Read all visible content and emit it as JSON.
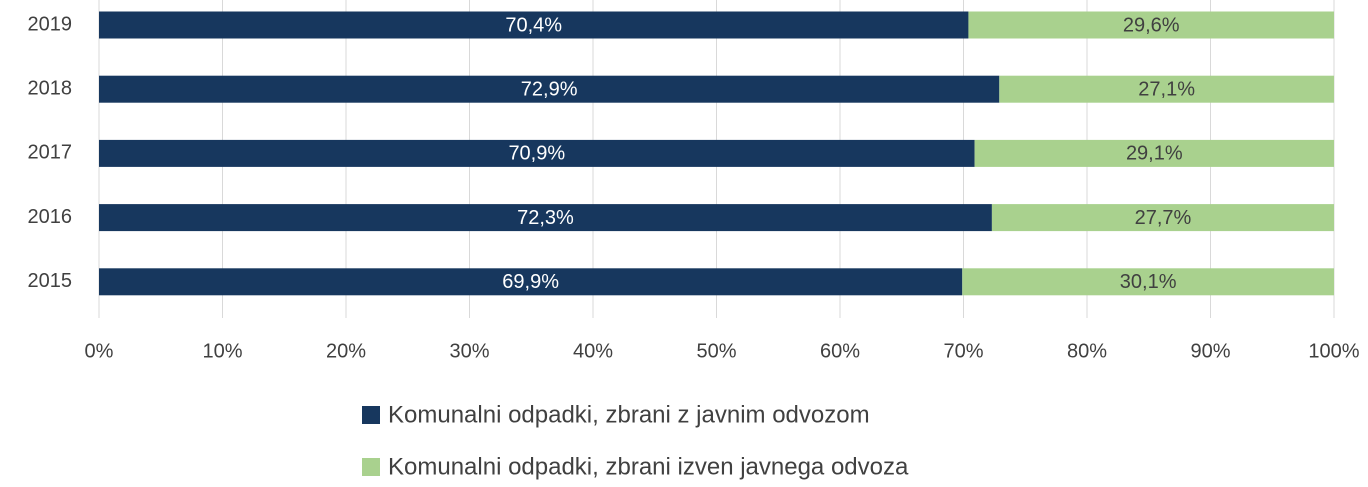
{
  "chart_data": {
    "type": "stacked_bar_horizontal",
    "categories": [
      "2019",
      "2018",
      "2017",
      "2016",
      "2015"
    ],
    "series": [
      {
        "name": "Komunalni odpadki, zbrani z javnim odvozom",
        "color": "#17375e",
        "values": [
          70.4,
          72.9,
          70.9,
          72.3,
          69.9
        ],
        "value_labels": [
          "70,4%",
          "72,9%",
          "70,9%",
          "72,3%",
          "69,9%"
        ]
      },
      {
        "name": "Komunalni odpadki, zbrani izven javnega odvoza",
        "color": "#a9d18e",
        "values": [
          29.6,
          27.1,
          29.1,
          27.7,
          30.1
        ],
        "value_labels": [
          "29,6%",
          "27,1%",
          "29,1%",
          "27,7%",
          "30,1%"
        ]
      }
    ],
    "xlim": [
      0,
      100
    ],
    "xticks": [
      {
        "value": 0,
        "label": "0%"
      },
      {
        "value": 10,
        "label": "10%"
      },
      {
        "value": 20,
        "label": "20%"
      },
      {
        "value": 30,
        "label": "30%"
      },
      {
        "value": 40,
        "label": "40%"
      },
      {
        "value": 50,
        "label": "50%"
      },
      {
        "value": 60,
        "label": "60%"
      },
      {
        "value": 70,
        "label": "70%"
      },
      {
        "value": 80,
        "label": "80%"
      },
      {
        "value": 90,
        "label": "90%"
      },
      {
        "value": 100,
        "label": "100%"
      }
    ],
    "grid": true,
    "legend": "bottom"
  }
}
